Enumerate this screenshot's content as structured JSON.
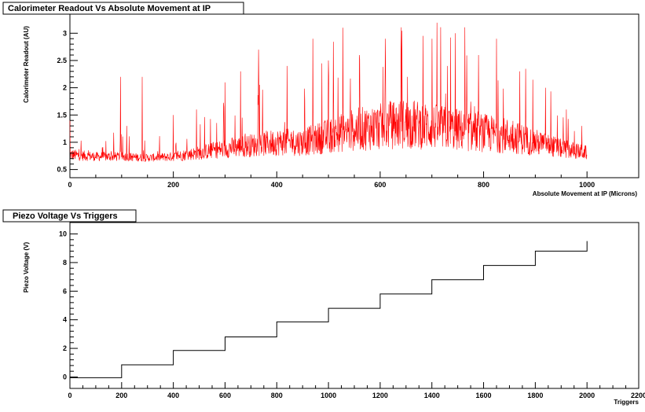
{
  "chart_data": [
    {
      "type": "line",
      "title": "Calorimeter Readout Vs Absolute Movement at IP",
      "xlabel": "Absolute Movement at IP (Microns)",
      "ylabel": "Calorimeter Readout (AU)",
      "xlim": [
        0,
        1100
      ],
      "ylim": [
        0.35,
        3.35
      ],
      "x_ticks": [
        0,
        200,
        400,
        600,
        800,
        1000
      ],
      "y_ticks": [
        0.5,
        1,
        1.5,
        2,
        2.5,
        3
      ],
      "x_tick_labels": [
        "0",
        "200",
        "400",
        "600",
        "800",
        "1000"
      ],
      "y_tick_labels": [
        "0.5",
        "1",
        "1.5",
        "2",
        "2.5",
        "3"
      ],
      "line_color": "#ff0000",
      "grid": false,
      "series": [
        {
          "x": [
            0,
            50,
            100,
            150,
            200,
            250,
            300,
            350,
            400,
            450,
            500,
            550,
            600,
            650,
            700,
            750,
            800,
            850,
            900,
            950,
            1000
          ],
          "baseline": [
            0.75,
            0.72,
            0.72,
            0.7,
            0.72,
            0.78,
            0.85,
            0.9,
            0.95,
            0.95,
            1.05,
            1.15,
            1.2,
            1.25,
            1.2,
            1.15,
            1.1,
            1.05,
            0.95,
            0.85,
            0.78
          ],
          "peaks_x": [
            0,
            98,
            110,
            140,
            200,
            245,
            300,
            330,
            365,
            420,
            470,
            500,
            528,
            560,
            610,
            640,
            700,
            730,
            745,
            790,
            825,
            870,
            920,
            960,
            990
          ],
          "peaks_y": [
            1.4,
            2.2,
            1.3,
            2.2,
            1.5,
            1.6,
            2.1,
            2.3,
            2.7,
            2.4,
            2.9,
            2.5,
            3.1,
            2.6,
            2.9,
            2.7,
            2.9,
            2.4,
            3.0,
            2.6,
            2.9,
            2.3,
            2.0,
            1.6,
            1.3
          ]
        }
      ]
    },
    {
      "type": "line",
      "title": "Piezo Voltage Vs Triggers",
      "xlabel": "Triggers",
      "ylabel": "Piezo Voltage (V)",
      "xlim": [
        0,
        2200
      ],
      "ylim": [
        -0.8,
        10.8
      ],
      "x_ticks": [
        0,
        200,
        400,
        600,
        800,
        1000,
        1200,
        1400,
        1600,
        1800,
        2000,
        2200
      ],
      "y_ticks": [
        0,
        2,
        4,
        6,
        8,
        10
      ],
      "x_tick_labels": [
        "0",
        "200",
        "400",
        "600",
        "800",
        "1000",
        "1200",
        "1400",
        "1600",
        "1800",
        "2000",
        "2200"
      ],
      "y_tick_labels": [
        "0",
        "2",
        "4",
        "6",
        "8",
        "10"
      ],
      "line_color": "#000000",
      "grid": false,
      "series": [
        {
          "x": [
            0,
            200,
            200,
            400,
            400,
            600,
            600,
            800,
            800,
            1000,
            1000,
            1200,
            1200,
            1400,
            1400,
            1600,
            1600,
            1800,
            1800,
            2000,
            2000,
            2000
          ],
          "y": [
            -0.05,
            -0.05,
            0.85,
            0.85,
            1.85,
            1.85,
            2.8,
            2.8,
            3.85,
            3.85,
            4.8,
            4.8,
            5.8,
            5.8,
            6.8,
            6.8,
            7.8,
            7.8,
            8.8,
            8.8,
            8.8,
            9.5
          ]
        }
      ]
    }
  ]
}
